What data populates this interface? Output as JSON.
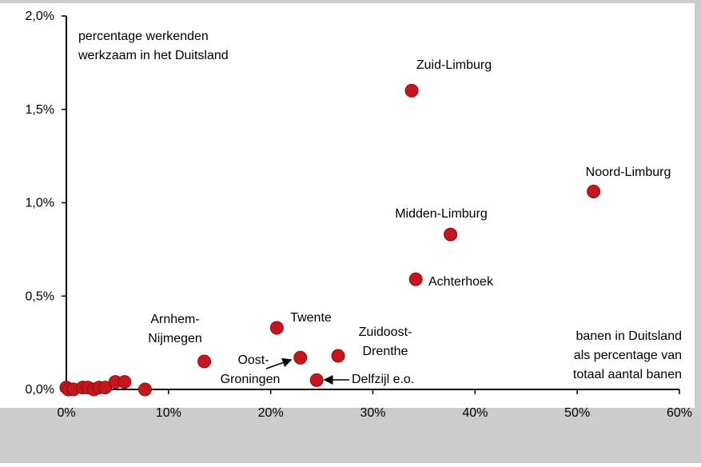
{
  "chart_data": {
    "type": "scatter",
    "color": "#c4161c",
    "x": [
      33.8,
      51.6,
      37.6,
      34.2,
      20.6,
      13.5,
      22.9,
      26.6,
      24.5,
      0,
      0.2,
      0.7,
      1.6,
      2.1,
      2.7,
      3.2,
      3.8,
      4.8,
      5.7,
      7.7
    ],
    "values": [
      1.6,
      1.06,
      0.83,
      0.59,
      0.33,
      0.15,
      0.17,
      0.18,
      0.05,
      0.01,
      0.0,
      0.0,
      0.01,
      0.01,
      0.0,
      0.01,
      0.01,
      0.04,
      0.04,
      0.0
    ],
    "point_labels": [
      [
        "Zuid-Limburg"
      ],
      [
        "Noord-Limburg"
      ],
      [
        "Midden-Limburg"
      ],
      [
        "Achterhoek"
      ],
      [
        "Twente"
      ],
      [
        "Arnhem-",
        "Nijmegen"
      ],
      [
        "Oost-",
        "Groningen"
      ],
      [
        "Zuidoost-",
        "Drenthe"
      ],
      [
        "Delfzijl e.o."
      ],
      null,
      null,
      null,
      null,
      null,
      null,
      null,
      null,
      null,
      null,
      null
    ],
    "xlim": [
      0,
      60
    ],
    "xticks": [
      {
        "value": 0,
        "label": "0%"
      },
      {
        "value": 10,
        "label": "10%"
      },
      {
        "value": 20,
        "label": "20%"
      },
      {
        "value": 30,
        "label": "30%"
      },
      {
        "value": 40,
        "label": "40%"
      },
      {
        "value": 50,
        "label": "50%"
      },
      {
        "value": 60,
        "label": "60%"
      }
    ],
    "ylim": [
      0,
      2.0
    ],
    "yticks": [
      {
        "value": 0,
        "label": "0,0%"
      },
      {
        "value": 0.5,
        "label": "0,5%"
      },
      {
        "value": 1.0,
        "label": "1,0%"
      },
      {
        "value": 1.5,
        "label": "1,5%"
      },
      {
        "value": 2.0,
        "label": "2,0%"
      }
    ],
    "y_axis_label": [
      "percentage werkenden",
      "werkzaam in het Duitsland"
    ],
    "x_axis_label": [
      "banen in Duitsland",
      "als percentage van",
      "totaal aantal banen"
    ]
  }
}
